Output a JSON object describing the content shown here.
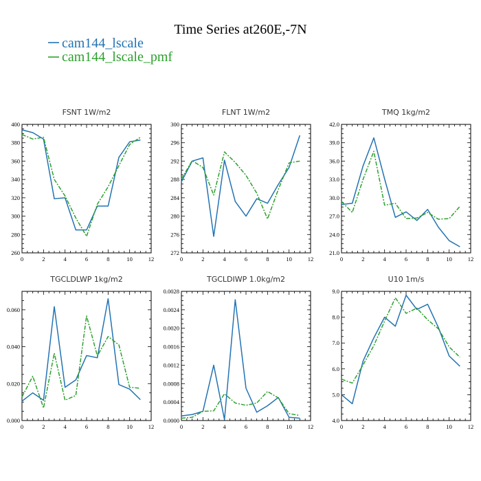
{
  "figure": {
    "title": "Time Series at260E,-7N",
    "legend": [
      {
        "label": "cam144_lscale",
        "color": "#2272b2",
        "dash": "solid"
      },
      {
        "label": "cam144_lscale_pmf",
        "color": "#2ca02c",
        "dash": "dashed"
      }
    ]
  },
  "chart_data": [
    {
      "type": "line",
      "title": "FSNT   1W/m2",
      "x": [
        0,
        1,
        2,
        3,
        4,
        5,
        6,
        7,
        8,
        9,
        10,
        11
      ],
      "xlim": [
        0,
        12
      ],
      "xticks": [
        0,
        2,
        4,
        6,
        8,
        10,
        12
      ],
      "ylim": [
        260,
        400
      ],
      "yticks": [
        "260",
        "280",
        "300",
        "320",
        "340",
        "360",
        "380",
        "400"
      ],
      "series": [
        {
          "name": "cam144_lscale",
          "values": [
            394,
            391,
            384,
            319,
            320,
            285,
            285,
            311,
            311,
            364,
            381,
            383
          ]
        },
        {
          "name": "cam144_lscale_pmf",
          "values": [
            389,
            384,
            386,
            340,
            322,
            298,
            278,
            313,
            332,
            355,
            378,
            386
          ]
        }
      ]
    },
    {
      "type": "line",
      "title": "FLNT   1W/m2",
      "x": [
        0,
        1,
        2,
        3,
        4,
        5,
        6,
        7,
        8,
        9,
        10,
        11
      ],
      "xlim": [
        0,
        12
      ],
      "xticks": [
        0,
        2,
        4,
        6,
        8,
        10,
        12
      ],
      "ylim": [
        272,
        300
      ],
      "yticks": [
        "272",
        "276",
        "280",
        "284",
        "288",
        "292",
        "296",
        "300"
      ],
      "series": [
        {
          "name": "cam144_lscale",
          "values": [
            287.5,
            292,
            292.7,
            275.6,
            292.2,
            283.2,
            280,
            283.8,
            282.8,
            286.9,
            290.6,
            297.6
          ]
        },
        {
          "name": "cam144_lscale_pmf",
          "values": [
            288.1,
            292.1,
            290.6,
            284.6,
            294,
            291.7,
            288.9,
            285,
            279.4,
            285.8,
            291.6,
            292
          ]
        }
      ]
    },
    {
      "type": "line",
      "title": "TMQ   1kg/m2",
      "x": [
        0,
        1,
        2,
        3,
        4,
        5,
        6,
        7,
        8,
        9,
        10,
        11
      ],
      "xlim": [
        0,
        12
      ],
      "xticks": [
        0,
        2,
        4,
        6,
        8,
        10,
        12
      ],
      "ylim": [
        21,
        42
      ],
      "yticks": [
        "21.0",
        "24.0",
        "27.0",
        "30.0",
        "33.0",
        "36.0",
        "39.0",
        "42.0"
      ],
      "series": [
        {
          "name": "cam144_lscale",
          "values": [
            28.9,
            29.1,
            35.2,
            39.8,
            33.1,
            26.8,
            27.7,
            26.3,
            28.1,
            25.2,
            23,
            22
          ]
        },
        {
          "name": "cam144_lscale_pmf",
          "values": [
            29.4,
            27.6,
            33,
            37.6,
            28.8,
            29.1,
            26.6,
            26.7,
            27.6,
            26.5,
            26.6,
            28.6
          ]
        }
      ]
    },
    {
      "type": "line",
      "title": "TGCLDLWP   1kg/m2",
      "x": [
        0,
        1,
        2,
        3,
        4,
        5,
        6,
        7,
        8,
        9,
        10,
        11
      ],
      "xlim": [
        0,
        12
      ],
      "xticks": [
        0,
        2,
        4,
        6,
        8,
        10,
        12
      ],
      "ylim": [
        0,
        0.07
      ],
      "yticks": [
        "0.000",
        "0.020",
        "0.040",
        "0.060"
      ],
      "ytick_values": [
        0,
        0.02,
        0.04,
        0.06
      ],
      "series": [
        {
          "name": "cam144_lscale",
          "values": [
            0.0105,
            0.015,
            0.011,
            0.0617,
            0.018,
            0.022,
            0.0352,
            0.034,
            0.066,
            0.0195,
            0.017,
            0.0113
          ]
        },
        {
          "name": "cam144_lscale_pmf",
          "values": [
            0.0128,
            0.024,
            0.0068,
            0.0365,
            0.011,
            0.0136,
            0.0567,
            0.035,
            0.0455,
            0.041,
            0.018,
            0.0175
          ]
        }
      ]
    },
    {
      "type": "line",
      "title": "TGCLDIWP   1.0kg/m2",
      "x": [
        0,
        1,
        2,
        3,
        4,
        5,
        6,
        7,
        8,
        9,
        10,
        11
      ],
      "xlim": [
        0,
        12
      ],
      "xticks": [
        0,
        2,
        4,
        6,
        8,
        10,
        12
      ],
      "ylim": [
        0,
        0.0028
      ],
      "yticks": [
        "0.0000",
        "0.0004",
        "0.0008",
        "0.0012",
        "0.0016",
        "0.0020",
        "0.0024",
        "0.0028"
      ],
      "series": [
        {
          "name": "cam144_lscale",
          "values": [
            0.0001,
            0.00013,
            0.0002,
            0.0012,
            2e-05,
            0.00262,
            0.0007,
            0.00018,
            0.00032,
            0.0005,
            7e-05,
            5e-05
          ]
        },
        {
          "name": "cam144_lscale_pmf",
          "values": [
            5e-05,
            7e-05,
            0.0002,
            0.00021,
            0.00058,
            0.00038,
            0.00033,
            0.00038,
            0.00063,
            0.00049,
            0.00015,
            0.00011
          ]
        }
      ]
    },
    {
      "type": "line",
      "title": "U10   1m/s",
      "x": [
        0,
        1,
        2,
        3,
        4,
        5,
        6,
        7,
        8,
        9,
        10,
        11
      ],
      "xlim": [
        0,
        12
      ],
      "xticks": [
        0,
        2,
        4,
        6,
        8,
        10,
        12
      ],
      "ylim": [
        4,
        9
      ],
      "yticks": [
        "4.0",
        "5.0",
        "6.0",
        "7.0",
        "8.0",
        "9.0"
      ],
      "series": [
        {
          "name": "cam144_lscale",
          "values": [
            5.0,
            4.65,
            6.3,
            7.2,
            8.0,
            7.65,
            8.85,
            8.3,
            8.5,
            7.6,
            6.5,
            6.1
          ]
        },
        {
          "name": "cam144_lscale_pmf",
          "values": [
            5.6,
            5.45,
            6.15,
            6.9,
            7.85,
            8.75,
            8.15,
            8.35,
            7.9,
            7.55,
            6.85,
            6.45
          ]
        }
      ]
    }
  ]
}
